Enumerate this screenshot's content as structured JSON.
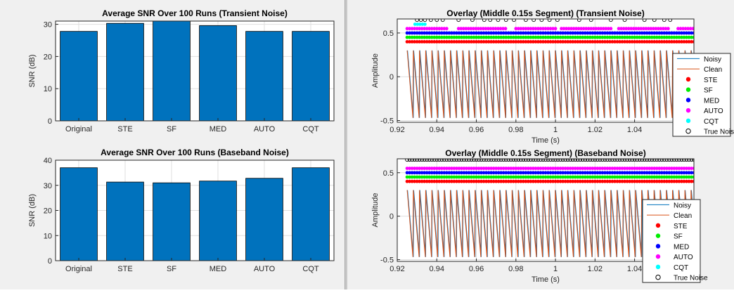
{
  "chart_data": [
    {
      "type": "bar",
      "title": "Average SNR Over 100 Runs (Transient Noise)",
      "xlabel": "",
      "ylabel": "SNR (dB)",
      "categories": [
        "Original",
        "STE",
        "SF",
        "MED",
        "AUTO",
        "CQT"
      ],
      "values": [
        27.8,
        30.3,
        31.2,
        29.6,
        27.8,
        27.8
      ],
      "ylim": [
        0,
        31
      ],
      "yticks": [
        0,
        10,
        20,
        30
      ],
      "grid": true,
      "bar_color": "#0072BD"
    },
    {
      "type": "bar",
      "title": "Average SNR Over 100 Runs (Baseband Noise)",
      "xlabel": "",
      "ylabel": "SNR (dB)",
      "categories": [
        "Original",
        "STE",
        "SF",
        "MED",
        "AUTO",
        "CQT"
      ],
      "values": [
        37.0,
        31.3,
        31.0,
        31.7,
        32.8,
        37.0
      ],
      "ylim": [
        0,
        40
      ],
      "yticks": [
        0,
        10,
        20,
        30,
        40
      ],
      "grid": true,
      "bar_color": "#0072BD"
    },
    {
      "type": "line",
      "title": "Overlay (Middle 0.15s Segment) (Transient Noise)",
      "xlabel": "Time (s)",
      "ylabel": "Amplitude",
      "xlim": [
        0.92,
        1.07
      ],
      "ylim": [
        -0.52,
        0.66
      ],
      "xticks": [
        0.92,
        0.94,
        0.96,
        0.98,
        1.0,
        1.02,
        1.04
      ],
      "yticks": [
        -0.5,
        0,
        0.5
      ],
      "grid": true,
      "legend_position": "right",
      "waveform": {
        "t_start": 0.925,
        "period": 0.00312,
        "max": 0.3,
        "min": -0.47
      },
      "series": [
        {
          "name": "Noisy",
          "kind": "line",
          "color": "#0072BD"
        },
        {
          "name": "Clean",
          "kind": "line",
          "color": "#D95319"
        },
        {
          "name": "STE",
          "kind": "markers",
          "color": "#ff0000",
          "y": 0.4,
          "x_ranges": [
            [
              0.925,
              1.07
            ]
          ]
        },
        {
          "name": "SF",
          "kind": "markers",
          "color": "#00ee00",
          "y": 0.45,
          "x_ranges": [
            [
              0.925,
              1.07
            ]
          ]
        },
        {
          "name": "MED",
          "kind": "markers",
          "color": "#0000ff",
          "y": 0.5,
          "x_ranges": [
            [
              0.925,
              1.07
            ]
          ]
        },
        {
          "name": "AUTO",
          "kind": "markers",
          "color": "#ff00ff",
          "y": 0.55,
          "x_ranges": [
            [
              0.925,
              0.946
            ],
            [
              0.951,
              0.975
            ],
            [
              0.98,
              1.0
            ],
            [
              1.003,
              1.028
            ],
            [
              1.032,
              1.058
            ],
            [
              1.062,
              1.07
            ]
          ]
        },
        {
          "name": "CQT",
          "kind": "markers",
          "color": "#00ffff",
          "y": 0.6,
          "x_ranges": [
            [
              0.929,
              0.934
            ]
          ]
        },
        {
          "name": "True Noise",
          "kind": "open-markers",
          "color": "#000000",
          "y": 0.65,
          "x_points": [
            0.93,
            0.932,
            0.934,
            0.937,
            0.94,
            0.943,
            0.951,
            0.958,
            0.964,
            0.967,
            0.971,
            0.975,
            0.979,
            0.985,
            0.989,
            0.993,
            0.997,
            1.001,
            1.012,
            1.018,
            1.028,
            1.035,
            1.045,
            1.05,
            1.055,
            1.058
          ]
        }
      ]
    },
    {
      "type": "line",
      "title": "Overlay (Middle 0.15s Segment) (Baseband Noise)",
      "xlabel": "Time (s)",
      "ylabel": "Amplitude",
      "xlim": [
        0.92,
        1.07
      ],
      "ylim": [
        -0.52,
        0.66
      ],
      "xticks": [
        0.92,
        0.94,
        0.96,
        0.98,
        1.0,
        1.02,
        1.04
      ],
      "yticks": [
        -0.5,
        0,
        0.5
      ],
      "grid": true,
      "legend_position": "right",
      "waveform": {
        "t_start": 0.925,
        "period": 0.00312,
        "max": 0.3,
        "min": -0.47
      },
      "series": [
        {
          "name": "Noisy",
          "kind": "line",
          "color": "#0072BD"
        },
        {
          "name": "Clean",
          "kind": "line",
          "color": "#D95319"
        },
        {
          "name": "STE",
          "kind": "markers",
          "color": "#ff0000",
          "y": 0.4,
          "x_ranges": [
            [
              0.925,
              1.07
            ]
          ]
        },
        {
          "name": "SF",
          "kind": "markers",
          "color": "#00ee00",
          "y": 0.45,
          "x_ranges": [
            [
              0.925,
              1.07
            ]
          ]
        },
        {
          "name": "MED",
          "kind": "markers",
          "color": "#0000ff",
          "y": 0.5,
          "x_ranges": [
            [
              0.925,
              1.07
            ]
          ]
        },
        {
          "name": "AUTO",
          "kind": "markers",
          "color": "#ff00ff",
          "y": 0.55,
          "x_ranges": [
            [
              0.925,
              1.07
            ]
          ]
        },
        {
          "name": "CQT",
          "kind": "markers",
          "color": "#00ffff",
          "y": 0.6,
          "x_ranges": []
        },
        {
          "name": "True Noise",
          "kind": "open-markers",
          "color": "#000000",
          "y": 0.65,
          "x_ranges": [
            [
              0.925,
              1.07
            ]
          ]
        }
      ]
    }
  ]
}
